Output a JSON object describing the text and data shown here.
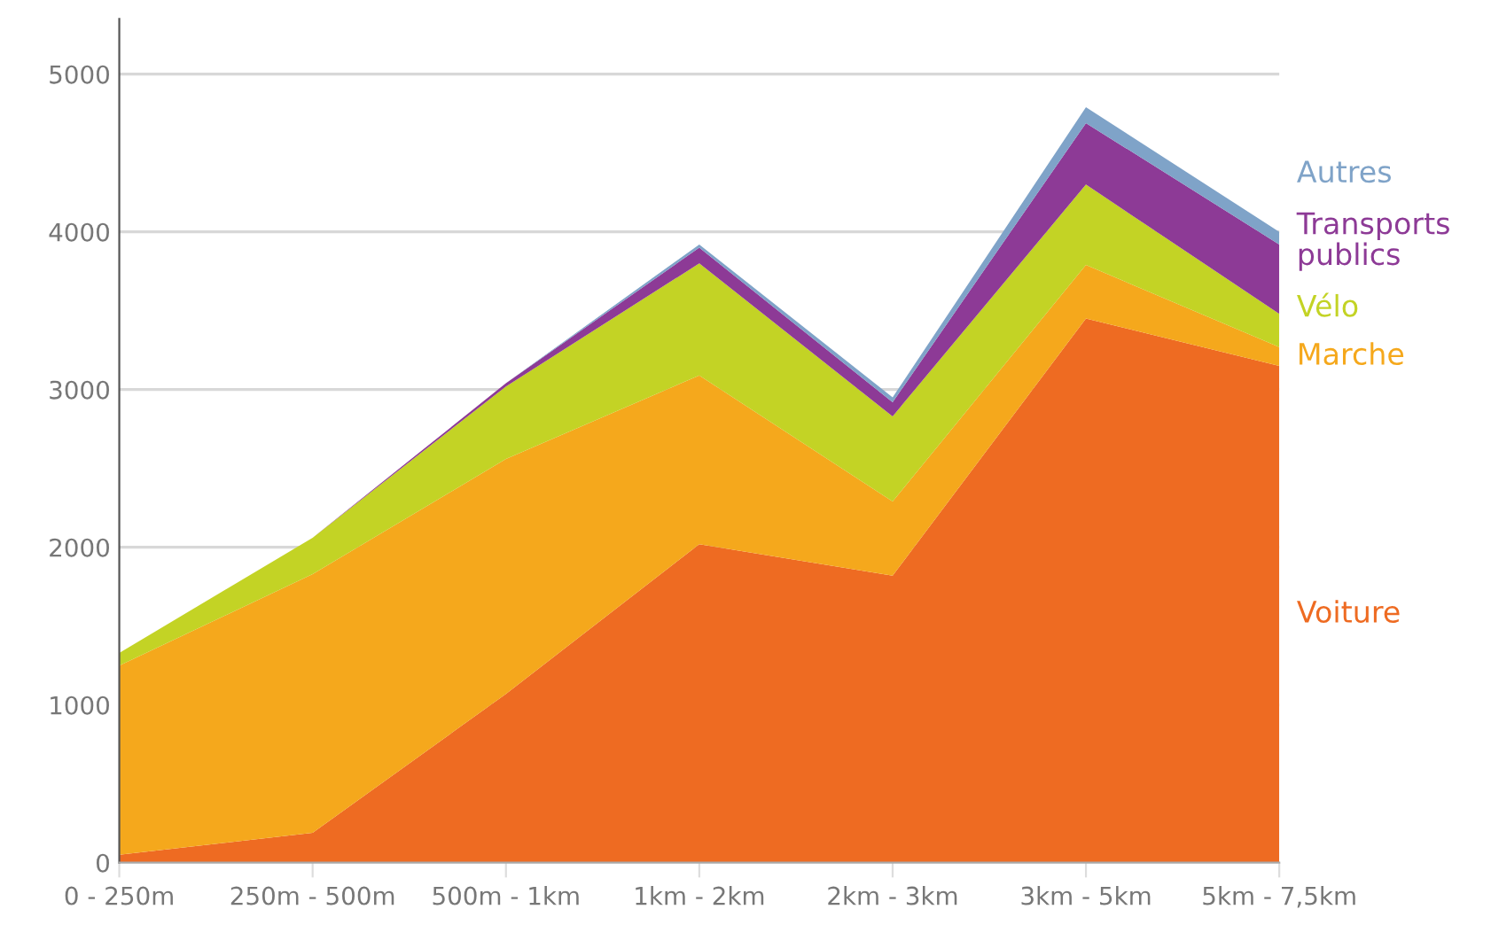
{
  "chart_data": {
    "type": "area",
    "stacked": true,
    "categories": [
      "0 - 250m",
      "250m - 500m",
      "500m - 1km",
      "1km - 2km",
      "2km - 3km",
      "3km - 5km",
      "5km - 7,5km"
    ],
    "series": [
      {
        "name": "Voiture",
        "color": "#ee6b22",
        "values": [
          50,
          190,
          1070,
          2020,
          1820,
          3450,
          3150
        ]
      },
      {
        "name": "Marche",
        "color": "#f5a81c",
        "values": [
          1200,
          1640,
          1490,
          1070,
          470,
          340,
          120
        ]
      },
      {
        "name": "Vélo",
        "color": "#c3d325",
        "values": [
          80,
          230,
          460,
          710,
          540,
          510,
          210
        ]
      },
      {
        "name": "Transports\npublics",
        "color": "#8d3a96",
        "values": [
          0,
          0,
          20,
          100,
          90,
          390,
          440
        ]
      },
      {
        "name": "Autres",
        "color": "#7fa3c8",
        "values": [
          0,
          0,
          0,
          20,
          30,
          100,
          80
        ]
      }
    ],
    "ylim": [
      0,
      5350
    ],
    "yticks": [
      0,
      1000,
      2000,
      3000,
      4000,
      5000
    ],
    "grid": "y",
    "legend": "right"
  }
}
